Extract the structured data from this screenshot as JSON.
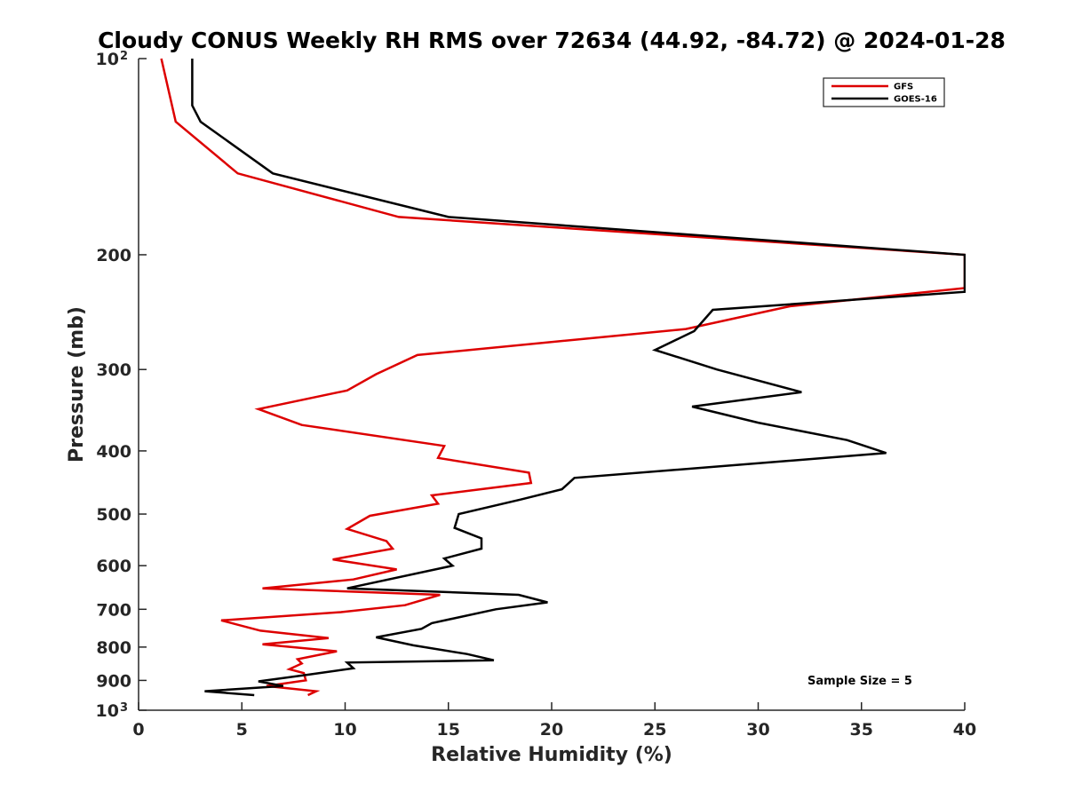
{
  "chart_data": {
    "type": "line",
    "title": "Cloudy CONUS Weekly RH RMS over 72634 (44.92, -84.72) @ 2024-01-28",
    "xlabel": "Relative Humidity (%)",
    "ylabel": "Pressure (mb)",
    "xlim": [
      0,
      40
    ],
    "ylim": [
      100,
      1000
    ],
    "y_scale": "log",
    "y_reversed": true,
    "x_ticks": [
      0,
      5,
      10,
      15,
      20,
      25,
      30,
      35,
      40
    ],
    "y_ticks": [
      {
        "value": 100,
        "label": "10",
        "sup": "2"
      },
      {
        "value": 200,
        "label": "200"
      },
      {
        "value": 300,
        "label": "300"
      },
      {
        "value": 400,
        "label": "400"
      },
      {
        "value": 500,
        "label": "500"
      },
      {
        "value": 600,
        "label": "600"
      },
      {
        "value": 700,
        "label": "700"
      },
      {
        "value": 800,
        "label": "800"
      },
      {
        "value": 900,
        "label": "900"
      },
      {
        "value": 1000,
        "label": "10",
        "sup": "3"
      }
    ],
    "grid": false,
    "legend_position": "top-right",
    "annotation": "Sample Size = 5",
    "series": [
      {
        "name": "GFS",
        "color": "#dd0000",
        "points": [
          [
            1.1,
            100
          ],
          [
            1.8,
            125
          ],
          [
            4.8,
            150
          ],
          [
            12.6,
            175
          ],
          [
            40,
            200
          ],
          [
            40,
            225
          ],
          [
            31.5,
            240
          ],
          [
            26.5,
            260
          ],
          [
            13.5,
            285
          ],
          [
            11.5,
            305
          ],
          [
            10.1,
            323
          ],
          [
            5.8,
            345
          ],
          [
            7.9,
            365
          ],
          [
            14.8,
            393
          ],
          [
            14.5,
            410
          ],
          [
            18.9,
            432
          ],
          [
            19.0,
            448
          ],
          [
            14.2,
            468
          ],
          [
            14.5,
            482
          ],
          [
            11.2,
            503
          ],
          [
            10.1,
            527
          ],
          [
            12.0,
            550
          ],
          [
            12.3,
            565
          ],
          [
            9.4,
            587
          ],
          [
            12.5,
            608
          ],
          [
            10.4,
            630
          ],
          [
            6.0,
            650
          ],
          [
            14.6,
            665
          ],
          [
            12.9,
            690
          ],
          [
            9.8,
            707
          ],
          [
            4.0,
            728
          ],
          [
            5.9,
            755
          ],
          [
            9.2,
            775
          ],
          [
            6.0,
            792
          ],
          [
            9.6,
            812
          ],
          [
            7.7,
            835
          ],
          [
            7.9,
            848
          ],
          [
            7.3,
            865
          ],
          [
            8.0,
            877
          ],
          [
            8.1,
            900
          ],
          [
            6.2,
            918
          ],
          [
            8.6,
            935
          ],
          [
            8.2,
            948
          ]
        ]
      },
      {
        "name": "GOES-16",
        "color": "#000000",
        "points": [
          [
            2.6,
            100
          ],
          [
            2.6,
            118
          ],
          [
            3.0,
            125
          ],
          [
            6.5,
            150
          ],
          [
            15.0,
            175
          ],
          [
            40,
            200
          ],
          [
            40,
            228
          ],
          [
            27.8,
            243
          ],
          [
            26.9,
            262
          ],
          [
            25.0,
            280
          ],
          [
            28.0,
            300
          ],
          [
            32.1,
            325
          ],
          [
            26.8,
            342
          ],
          [
            30.0,
            362
          ],
          [
            34.3,
            385
          ],
          [
            36.2,
            403
          ],
          [
            21.1,
            440
          ],
          [
            20.5,
            458
          ],
          [
            18.5,
            475
          ],
          [
            15.5,
            500
          ],
          [
            15.3,
            525
          ],
          [
            16.6,
            545
          ],
          [
            16.6,
            565
          ],
          [
            14.8,
            585
          ],
          [
            15.2,
            600
          ],
          [
            10.1,
            650
          ],
          [
            18.4,
            665
          ],
          [
            19.8,
            683
          ],
          [
            17.3,
            700
          ],
          [
            14.2,
            735
          ],
          [
            13.7,
            750
          ],
          [
            11.5,
            773
          ],
          [
            13.3,
            795
          ],
          [
            15.9,
            820
          ],
          [
            17.2,
            838
          ],
          [
            10.1,
            845
          ],
          [
            10.4,
            862
          ],
          [
            8.2,
            882
          ],
          [
            5.8,
            903
          ],
          [
            7.0,
            918
          ],
          [
            3.2,
            935
          ],
          [
            5.6,
            948
          ]
        ]
      }
    ]
  }
}
